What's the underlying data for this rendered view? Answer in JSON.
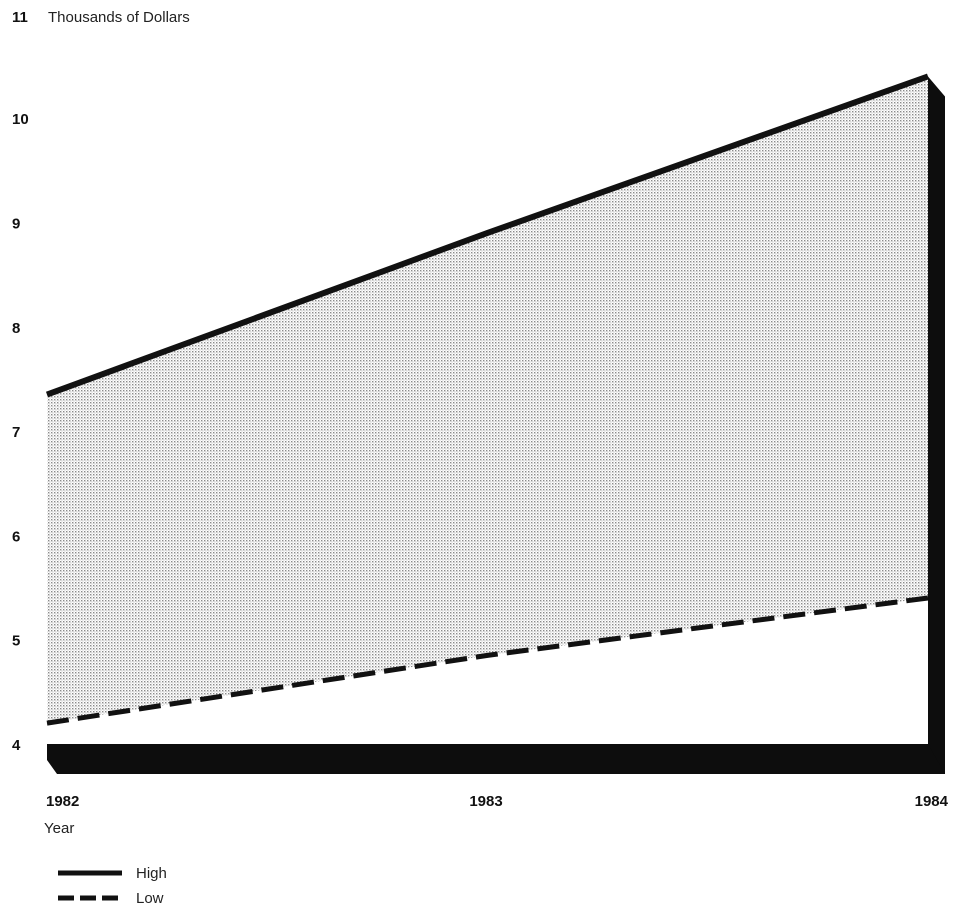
{
  "chart_data": {
    "type": "area",
    "ylabel": "Thousands of Dollars",
    "xlabel": "Year",
    "x": [
      "1982",
      "1983",
      "1984"
    ],
    "ylim": [
      4,
      11
    ],
    "yticks": [
      4,
      5,
      6,
      7,
      8,
      9,
      10,
      11
    ],
    "grid": false,
    "legend_placement": "bottom-left",
    "series": [
      {
        "name": "High",
        "values": [
          7.35,
          8.9,
          10.4
        ],
        "style": "solid"
      },
      {
        "name": "Low",
        "values": [
          4.2,
          4.85,
          5.4
        ],
        "style": "dashed"
      }
    ],
    "colors": {
      "line": "#111111",
      "band": "#bdbdbd",
      "base": "#111111"
    }
  }
}
